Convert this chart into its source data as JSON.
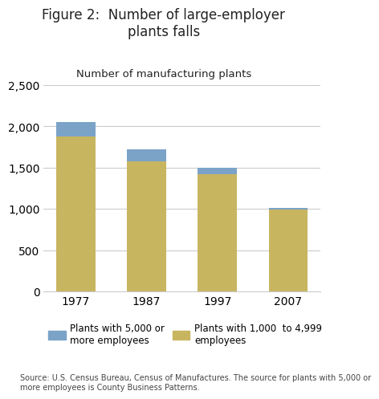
{
  "title": "Figure 2:  Number of large-employer\nplants falls",
  "subtitle": "Number of manufacturing plants",
  "source_text": "Source: U.S. Census Bureau, Census of Manufactures. The source for plants with 5,000 or\nmore employees is County Business Patterns.",
  "years": [
    "1977",
    "1987",
    "1997",
    "2007"
  ],
  "tan_values": [
    1875,
    1575,
    1425,
    990
  ],
  "blue_values": [
    175,
    150,
    75,
    20
  ],
  "tan_color": "#C8B560",
  "blue_color": "#7BA3C8",
  "ylim": [
    0,
    2500
  ],
  "yticks": [
    0,
    500,
    1000,
    1500,
    2000,
    2500
  ],
  "legend_label_blue": "Plants with 5,000 or\nmore employees",
  "legend_label_tan": "Plants with 1,000  to 4,999\nemployees",
  "background_color": "#ffffff",
  "bar_width": 0.55
}
